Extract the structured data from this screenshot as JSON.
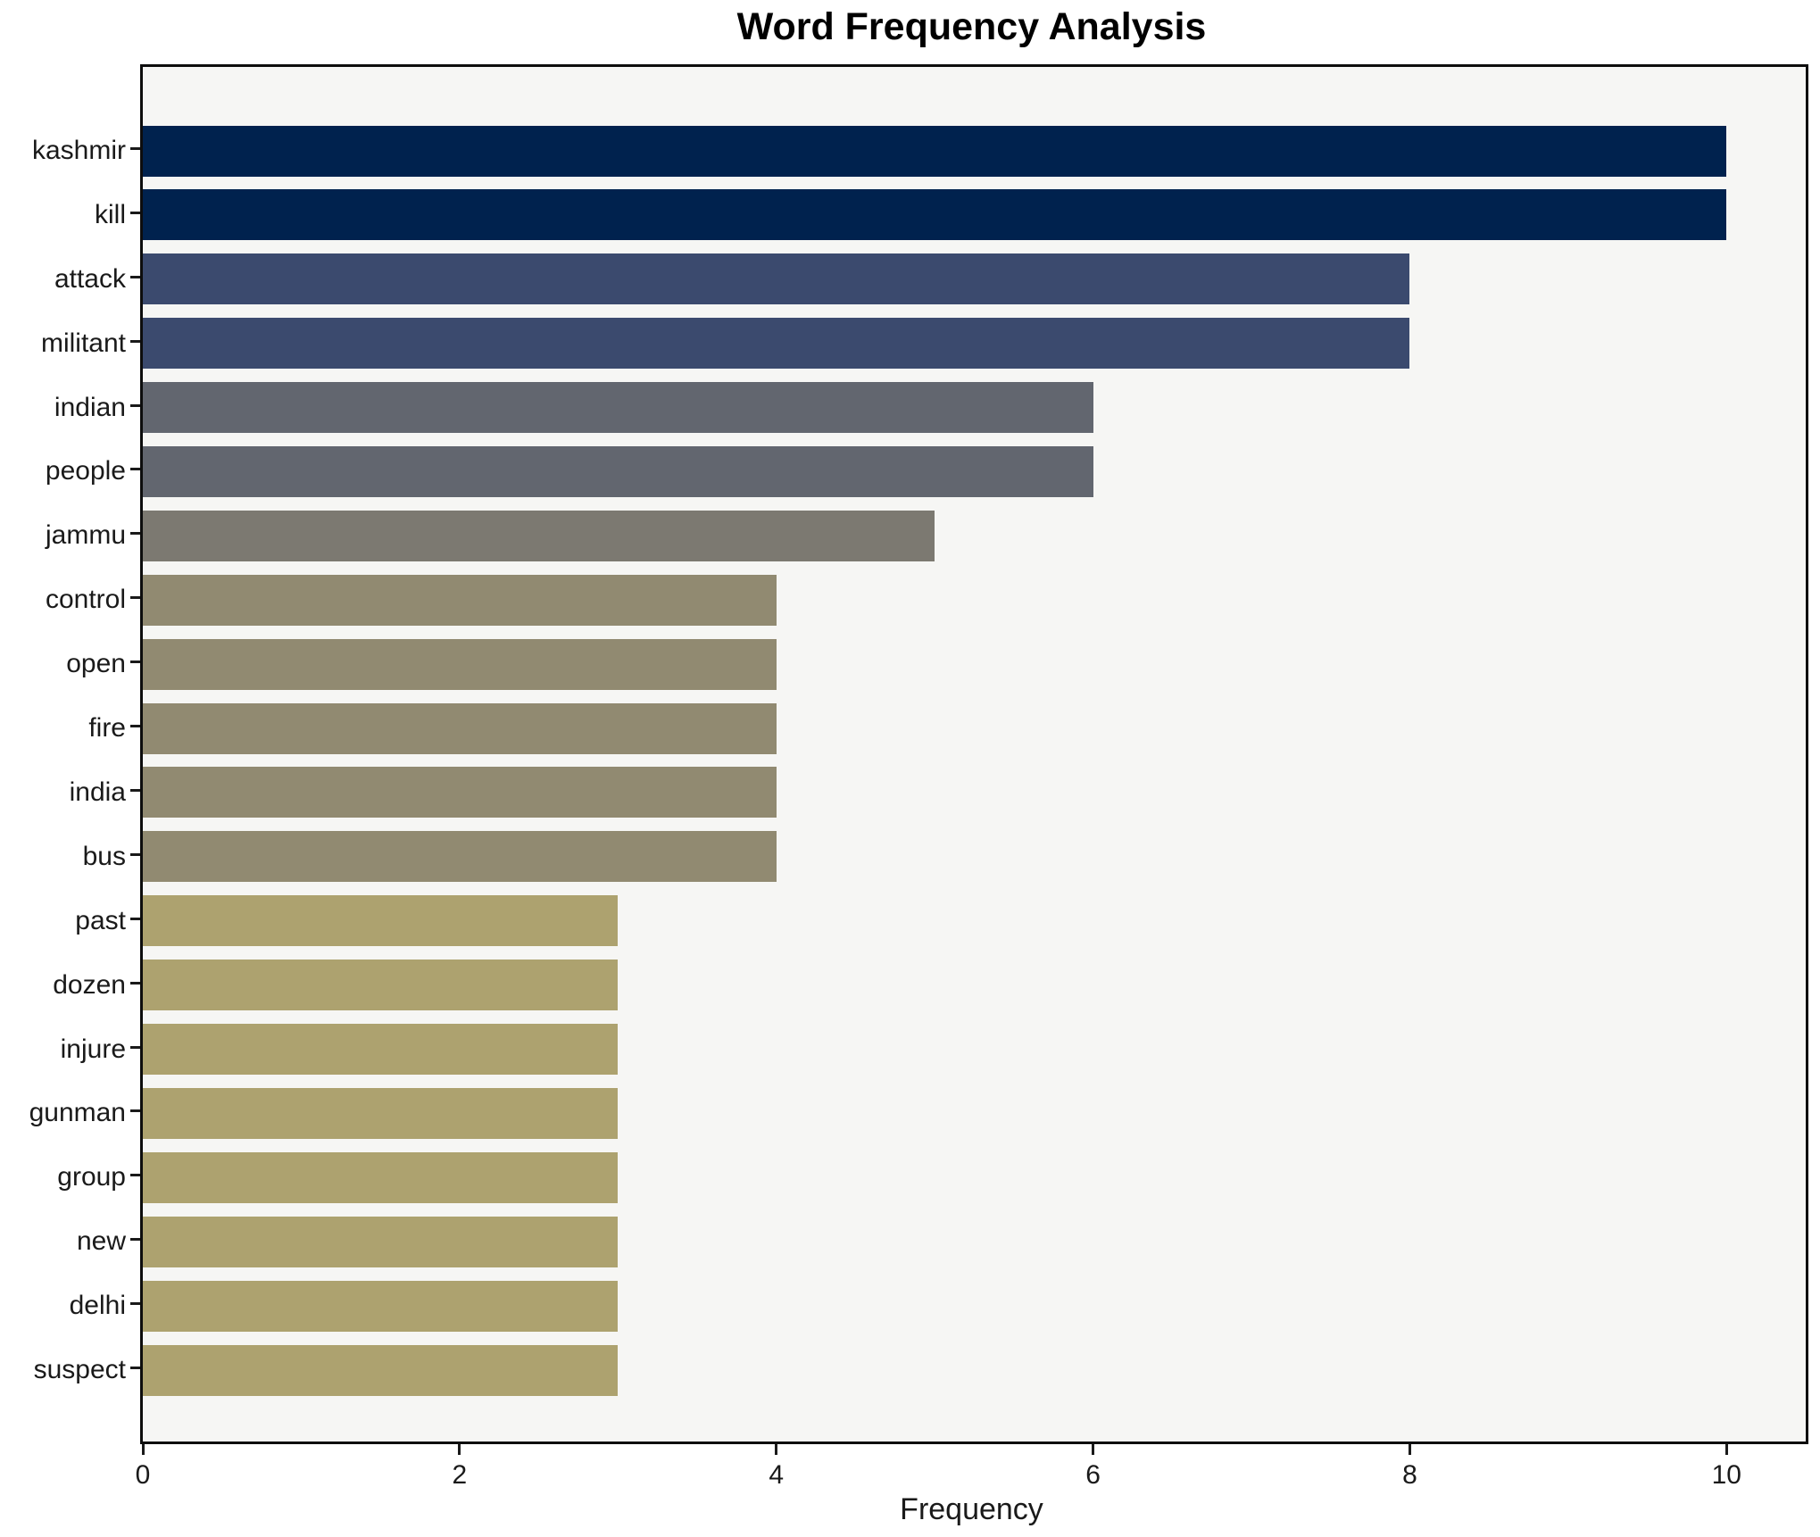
{
  "chart_data": {
    "type": "bar",
    "orientation": "horizontal",
    "title": "Word Frequency Analysis",
    "xlabel": "Frequency",
    "ylabel": "",
    "categories": [
      "kashmir",
      "kill",
      "attack",
      "militant",
      "indian",
      "people",
      "jammu",
      "control",
      "open",
      "fire",
      "india",
      "bus",
      "past",
      "dozen",
      "injure",
      "gunman",
      "group",
      "new",
      "delhi",
      "suspect"
    ],
    "values": [
      10,
      10,
      8,
      8,
      6,
      6,
      5,
      4,
      4,
      4,
      4,
      4,
      3,
      3,
      3,
      3,
      3,
      3,
      3,
      3
    ],
    "bar_colors": [
      "#00224e",
      "#00224e",
      "#3b4a6e",
      "#3b4a6e",
      "#62666f",
      "#62666f",
      "#7c7971",
      "#918a71",
      "#918a71",
      "#918a71",
      "#918a71",
      "#918a71",
      "#ada26f",
      "#ada26f",
      "#ada26f",
      "#ada26f",
      "#ada26f",
      "#ada26f",
      "#ada26f",
      "#ada26f"
    ],
    "xlim": [
      0,
      10.5
    ],
    "xticks": [
      0,
      2,
      4,
      6,
      8,
      10
    ],
    "grid": false,
    "legend_position": "none",
    "plot_background": "#f6f6f4",
    "figure_background": "#ffffff"
  }
}
